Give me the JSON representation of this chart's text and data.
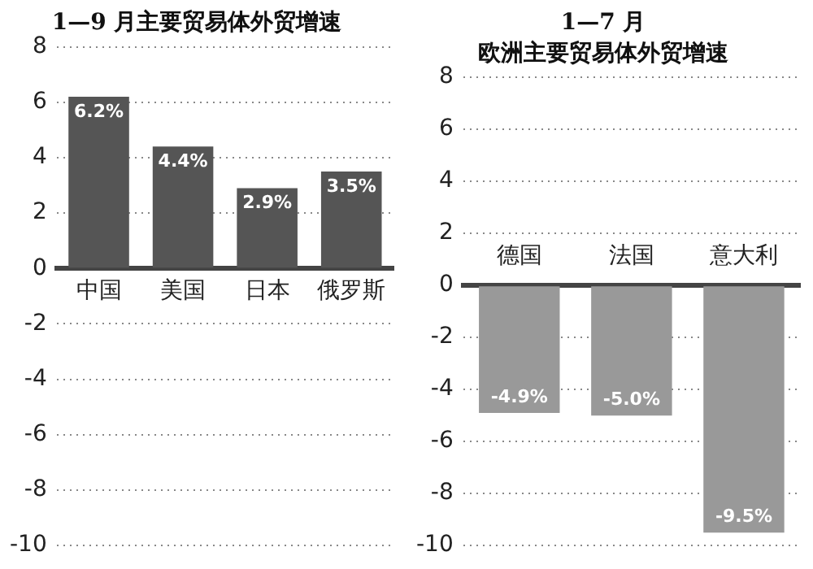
{
  "chart_data": [
    {
      "type": "bar",
      "title": "1—9 月主要贸易体外贸增速",
      "categories": [
        "中国",
        "美国",
        "日本",
        "俄罗斯"
      ],
      "values": [
        6.2,
        4.4,
        2.9,
        3.5
      ],
      "value_labels": [
        "6.2%",
        "4.4%",
        "2.9%",
        "3.5%"
      ],
      "color": "#555555",
      "ylim": [
        -10,
        8
      ],
      "yticks": [
        8,
        6,
        4,
        2,
        0,
        -2,
        -4,
        -6,
        -8,
        -10
      ],
      "grid": "y"
    },
    {
      "type": "bar",
      "title": "1—7 月",
      "subtitle": "欧洲主要贸易体外贸增速",
      "categories": [
        "德国",
        "法国",
        "意大利"
      ],
      "values": [
        -4.9,
        -5.0,
        -9.5
      ],
      "value_labels": [
        "-4.9%",
        "-5.0%",
        "-9.5%"
      ],
      "color": "#999999",
      "ylim": [
        -10,
        8
      ],
      "yticks": [
        8,
        6,
        4,
        2,
        0,
        -2,
        -4,
        -6,
        -8,
        -10
      ],
      "grid": "y"
    }
  ]
}
